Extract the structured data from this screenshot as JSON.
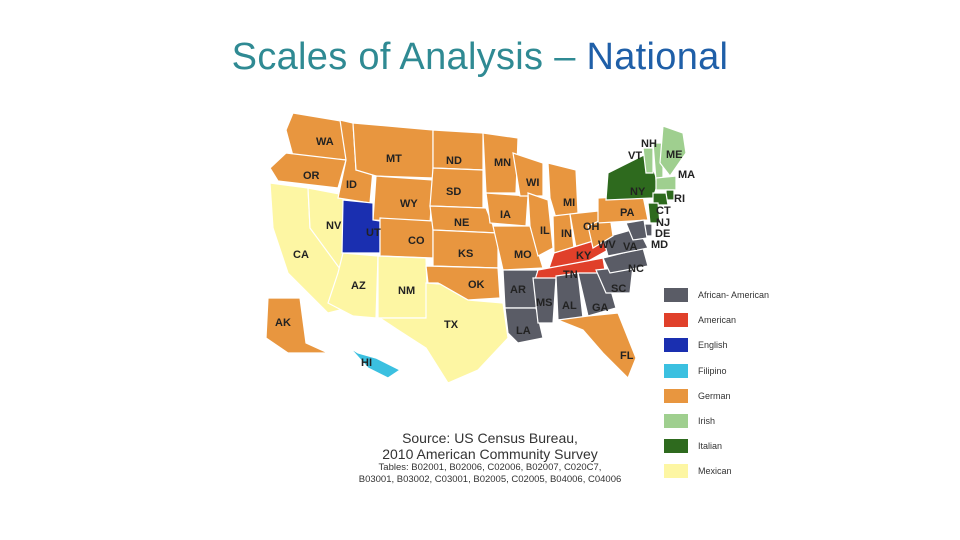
{
  "title": {
    "main": "Scales of Analysis – ",
    "accent": "National"
  },
  "map": {
    "states": [
      {
        "id": "WA",
        "label": "WA",
        "group": "German"
      },
      {
        "id": "OR",
        "label": "OR",
        "group": "German"
      },
      {
        "id": "CA",
        "label": "CA",
        "group": "Mexican"
      },
      {
        "id": "NV",
        "label": "NV",
        "group": "Mexican"
      },
      {
        "id": "ID",
        "label": "ID",
        "group": "German"
      },
      {
        "id": "MT",
        "label": "MT",
        "group": "German"
      },
      {
        "id": "WY",
        "label": "WY",
        "group": "German"
      },
      {
        "id": "UT",
        "label": "UT",
        "group": "English"
      },
      {
        "id": "AZ",
        "label": "AZ",
        "group": "Mexican"
      },
      {
        "id": "CO",
        "label": "CO",
        "group": "German"
      },
      {
        "id": "NM",
        "label": "NM",
        "group": "Mexican"
      },
      {
        "id": "ND",
        "label": "ND",
        "group": "German"
      },
      {
        "id": "SD",
        "label": "SD",
        "group": "German"
      },
      {
        "id": "NE",
        "label": "NE",
        "group": "German"
      },
      {
        "id": "KS",
        "label": "KS",
        "group": "German"
      },
      {
        "id": "OK",
        "label": "OK",
        "group": "German"
      },
      {
        "id": "TX",
        "label": "TX",
        "group": "Mexican"
      },
      {
        "id": "MN",
        "label": "MN",
        "group": "German"
      },
      {
        "id": "IA",
        "label": "IA",
        "group": "German"
      },
      {
        "id": "MO",
        "label": "MO",
        "group": "German"
      },
      {
        "id": "AR",
        "label": "AR",
        "group": "African- American"
      },
      {
        "id": "LA",
        "label": "LA",
        "group": "African- American"
      },
      {
        "id": "WI",
        "label": "WI",
        "group": "German"
      },
      {
        "id": "IL",
        "label": "IL",
        "group": "German"
      },
      {
        "id": "MI",
        "label": "MI",
        "group": "German"
      },
      {
        "id": "IN",
        "label": "IN",
        "group": "German"
      },
      {
        "id": "OH",
        "label": "OH",
        "group": "German"
      },
      {
        "id": "KY",
        "label": "KY",
        "group": "American"
      },
      {
        "id": "TN",
        "label": "TN",
        "group": "American"
      },
      {
        "id": "MS",
        "label": "MS",
        "group": "African- American"
      },
      {
        "id": "AL",
        "label": "AL",
        "group": "African- American"
      },
      {
        "id": "GA",
        "label": "GA",
        "group": "African- American"
      },
      {
        "id": "FL",
        "label": "FL",
        "group": "German"
      },
      {
        "id": "SC",
        "label": "SC",
        "group": "African- American"
      },
      {
        "id": "NC",
        "label": "NC",
        "group": "African- American"
      },
      {
        "id": "VA",
        "label": "VA",
        "group": "African- American"
      },
      {
        "id": "WV",
        "label": "WV",
        "group": "German"
      },
      {
        "id": "PA",
        "label": "PA",
        "group": "German"
      },
      {
        "id": "NY",
        "label": "NY",
        "group": "Italian"
      },
      {
        "id": "VT",
        "label": "VT",
        "group": "Irish"
      },
      {
        "id": "NH",
        "label": "NH",
        "group": "Irish"
      },
      {
        "id": "ME",
        "label": "ME",
        "group": "Irish"
      },
      {
        "id": "MA",
        "label": "MA",
        "group": "Irish"
      },
      {
        "id": "RI",
        "label": "RI",
        "group": "Italian"
      },
      {
        "id": "CT",
        "label": "CT",
        "group": "Italian"
      },
      {
        "id": "NJ",
        "label": "NJ",
        "group": "Italian"
      },
      {
        "id": "DE",
        "label": "DE",
        "group": "African- American"
      },
      {
        "id": "MD",
        "label": "MD",
        "group": "African- American"
      },
      {
        "id": "AK",
        "label": "AK",
        "group": "German"
      },
      {
        "id": "HI",
        "label": "HI",
        "group": "Filipino"
      }
    ]
  },
  "legend": [
    {
      "label": "African- American",
      "color": "#5a5c66"
    },
    {
      "label": "American",
      "color": "#e0402a"
    },
    {
      "label": "English",
      "color": "#1a2fb0"
    },
    {
      "label": "Filipino",
      "color": "#3bc0e0"
    },
    {
      "label": "German",
      "color": "#e8963f"
    },
    {
      "label": "Irish",
      "color": "#9fcf8f"
    },
    {
      "label": "Italian",
      "color": "#2e6a1e"
    },
    {
      "label": "Mexican",
      "color": "#fdf6a3"
    }
  ],
  "source": {
    "line1": "Source: US Census Bureau,",
    "line2": "2010 American Community Survey",
    "line3": "Tables: B02001, B02006, C02006, B02007, C020C7,",
    "line4": "B03001, B03002, C03001, B02005, C02005, B04006, C04006"
  }
}
